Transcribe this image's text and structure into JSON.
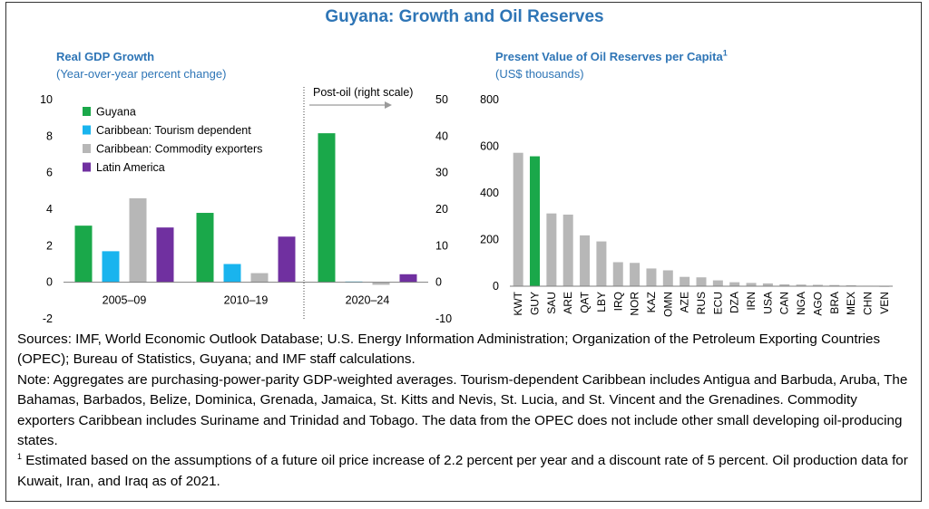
{
  "title": "Guyana: Growth and Oil Reserves",
  "chart_data": [
    {
      "type": "bar",
      "title": "Real GDP Growth",
      "subtitle": "(Year-over-year percent change)",
      "categories": [
        "2005–09",
        "2010–19",
        "2020–24"
      ],
      "series": [
        {
          "name": "Guyana",
          "color": "#1aa84a",
          "values": [
            3.1,
            3.8,
            40.8
          ]
        },
        {
          "name": "Caribbean: Tourism dependent",
          "color": "#19b4ee",
          "values": [
            1.7,
            1.0,
            0.2
          ]
        },
        {
          "name": "Caribbean: Commodity exporters",
          "color": "#b7b7b7",
          "values": [
            4.6,
            0.5,
            -0.7
          ]
        },
        {
          "name": "Latin America",
          "color": "#7030a0",
          "values": [
            3.0,
            2.5,
            2.2
          ]
        }
      ],
      "ylim": [
        -2,
        10
      ],
      "yticks": [
        "-2",
        "0",
        "2",
        "4",
        "6",
        "8",
        "10"
      ],
      "y2lim": [
        -10,
        50
      ],
      "y2ticks": [
        "-10",
        "0",
        "10",
        "20",
        "30",
        "40",
        "50"
      ],
      "y2_applies_to": "2020–24",
      "annotation": "Post-oil (right scale)",
      "legend": "top-left",
      "grid": false
    },
    {
      "type": "bar",
      "title": "Present Value of Oil Reserves per Capita",
      "title_sup": "1",
      "subtitle": "(US$ thousands)",
      "categories": [
        "KWT",
        "GUY",
        "SAU",
        "ARE",
        "QAT",
        "LBY",
        "IRQ",
        "NOR",
        "KAZ",
        "OMN",
        "AZE",
        "RUS",
        "ECU",
        "DZA",
        "IRN",
        "USA",
        "CAN",
        "NGA",
        "AGO",
        "BRA",
        "MEX",
        "CHN",
        "VEN"
      ],
      "values": [
        572,
        557,
        312,
        307,
        218,
        192,
        103,
        100,
        76,
        68,
        40,
        38,
        25,
        17,
        14,
        12,
        8,
        7,
        6,
        5,
        4,
        2,
        1
      ],
      "highlight": "GUY",
      "colors": {
        "default": "#b7b7b7",
        "highlight": "#1aa84a"
      },
      "ylim": [
        0,
        800
      ],
      "yticks": [
        "0",
        "200",
        "400",
        "600",
        "800"
      ],
      "grid": false
    }
  ],
  "notes": {
    "sources": "Sources: IMF, World Economic Outlook Database; U.S. Energy Information Administration; Organization of the Petroleum Exporting Countries (OPEC); Bureau of Statistics, Guyana; and IMF staff calculations.",
    "note": "Note: Aggregates are purchasing-power-parity GDP-weighted averages. Tourism-dependent Caribbean includes Antigua and Barbuda, Aruba, The Bahamas, Barbados, Belize, Dominica, Grenada, Jamaica, St. Kitts and Nevis, St. Lucia, and St. Vincent and the Grenadines. Commodity exporters Caribbean includes Suriname and Trinidad and Tobago. The data from the OPEC does not include other small developing oil-producing states.",
    "footnote_mark": "1",
    "footnote": " Estimated based on the assumptions of a future oil price increase of 2.2 percent per year and a discount rate of 5 percent. Oil production data for Kuwait, Iran, and Iraq as of 2021."
  }
}
